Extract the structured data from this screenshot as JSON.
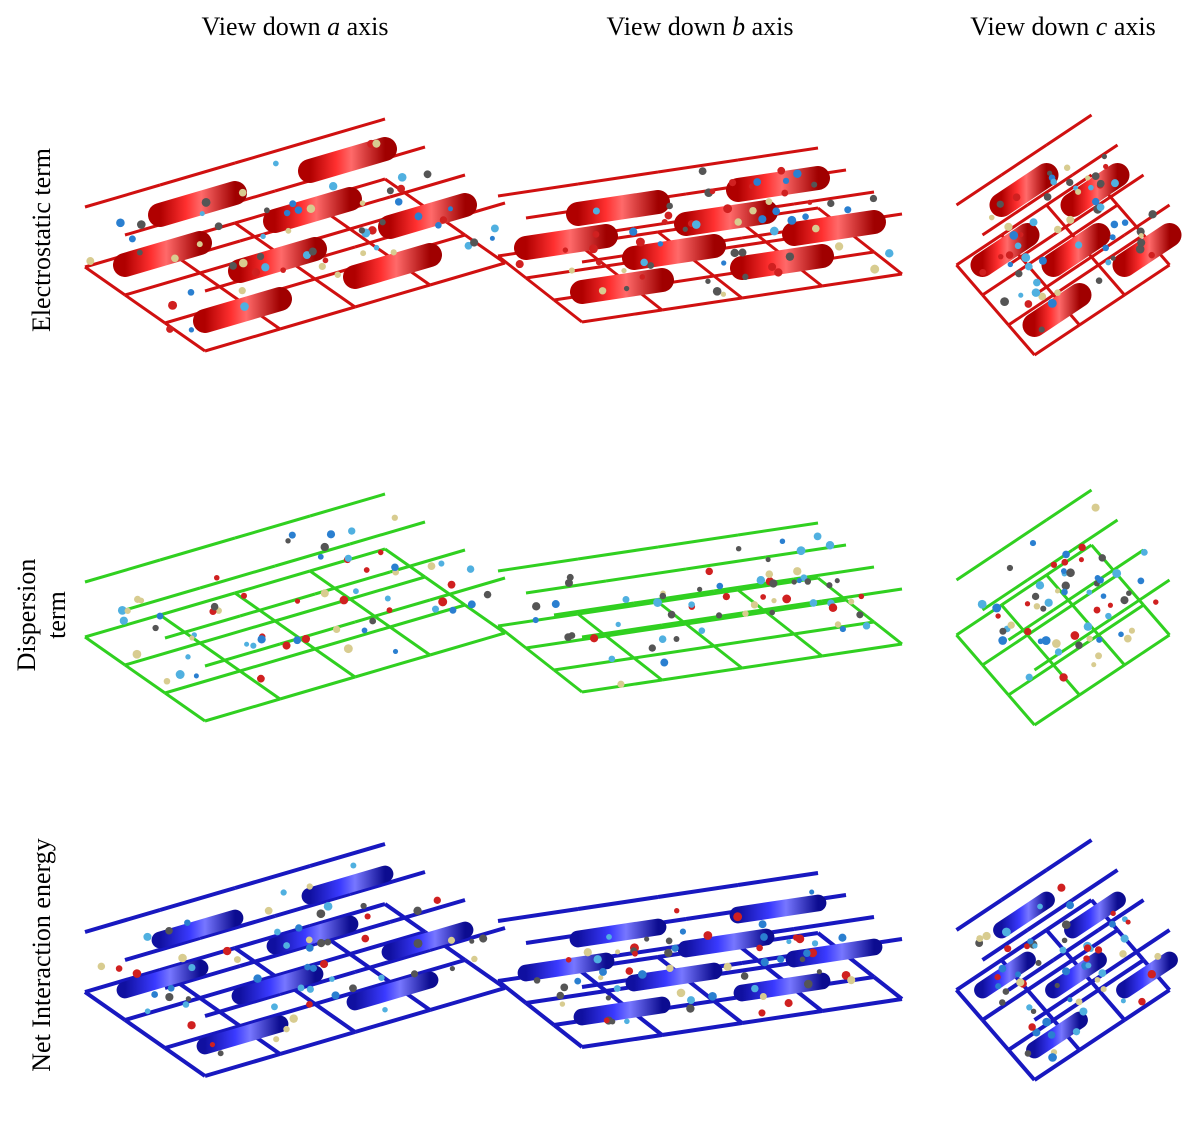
{
  "columns": [
    {
      "prefix": "View down",
      "axis": "a",
      "suffix": "axis"
    },
    {
      "prefix": "View down",
      "axis": "b",
      "suffix": "axis"
    },
    {
      "prefix": "View down",
      "axis": "c",
      "suffix": "axis"
    }
  ],
  "rows": [
    {
      "label": [
        "Electrostatic term"
      ]
    },
    {
      "label": [
        "Dispersion",
        "term"
      ]
    },
    {
      "label": [
        "Net Interaction energy"
      ]
    }
  ]
}
